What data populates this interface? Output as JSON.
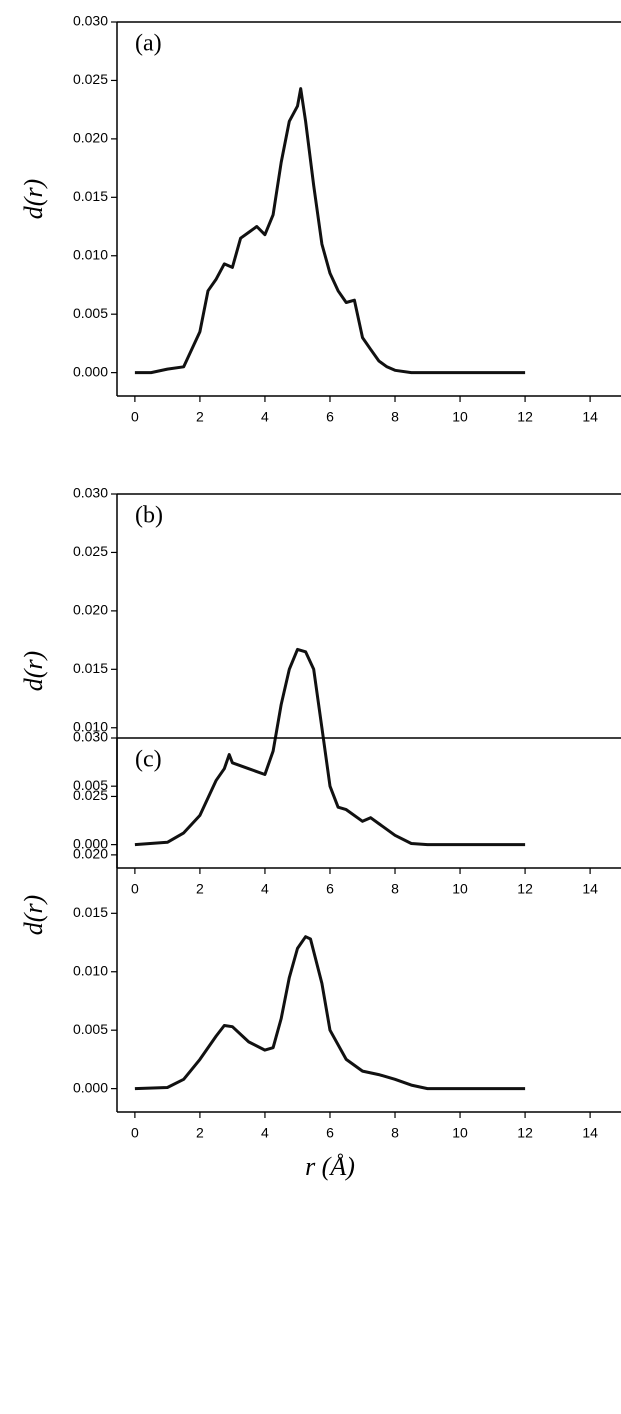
{
  "chart_data": [
    {
      "type": "line",
      "label": "(a)",
      "y_label": "d(r)",
      "xlim": [
        -0.55,
        14.95
      ],
      "ylim": [
        -0.002,
        0.03
      ],
      "xticks": [
        0,
        2,
        4,
        6,
        8,
        10,
        12,
        14
      ],
      "yticks": [
        {
          "value": 0,
          "label": "0.000"
        },
        {
          "value": 0.005,
          "label": "0.005"
        },
        {
          "value": 0.01,
          "label": "0.010"
        },
        {
          "value": 0.015,
          "label": "0.015"
        },
        {
          "value": 0.02,
          "label": "0.020"
        },
        {
          "value": 0.025,
          "label": "0.025"
        },
        {
          "value": 0.03,
          "label": "0.030"
        }
      ],
      "x": [
        0,
        0.5,
        1,
        1.5,
        1.75,
        2,
        2.25,
        2.5,
        2.75,
        3,
        3.25,
        3.5,
        3.75,
        4,
        4.25,
        4.5,
        4.75,
        5,
        5.1,
        5.25,
        5.5,
        5.75,
        6,
        6.25,
        6.5,
        6.75,
        7,
        7.25,
        7.5,
        7.75,
        8,
        8.5,
        9,
        10,
        11,
        12
      ],
      "series": [
        {
          "color": "#111111",
          "values": [
            0,
            0,
            0.0003,
            0.0005,
            0.002,
            0.0035,
            0.007,
            0.008,
            0.0093,
            0.009,
            0.0115,
            0.012,
            0.0125,
            0.0118,
            0.0135,
            0.018,
            0.0215,
            0.0228,
            0.0243,
            0.0215,
            0.016,
            0.011,
            0.0085,
            0.007,
            0.006,
            0.0062,
            0.003,
            0.002,
            0.001,
            0.0005,
            0.0002,
            0,
            0,
            0,
            0,
            0
          ]
        }
      ]
    },
    {
      "type": "line",
      "label": "(b)",
      "y_label": "d(r)",
      "xlim": [
        -0.55,
        14.95
      ],
      "ylim": [
        -0.002,
        0.03
      ],
      "xticks": [
        0,
        2,
        4,
        6,
        8,
        10,
        12,
        14
      ],
      "yticks": [
        {
          "value": 0,
          "label": "0.000"
        },
        {
          "value": 0.005,
          "label": "0.005"
        },
        {
          "value": 0.01,
          "label": "0.010"
        },
        {
          "value": 0.015,
          "label": "0.015"
        },
        {
          "value": 0.02,
          "label": "0.020"
        },
        {
          "value": 0.025,
          "label": "0.025"
        },
        {
          "value": 0.03,
          "label": "0.030"
        }
      ],
      "x": [
        0,
        1,
        1.5,
        2,
        2.5,
        2.75,
        2.9,
        3,
        3.5,
        4,
        4.25,
        4.5,
        4.75,
        5,
        5.25,
        5.5,
        5.75,
        6,
        6.25,
        6.5,
        7,
        7.25,
        7.5,
        8,
        8.5,
        9,
        10,
        11,
        12
      ],
      "series": [
        {
          "color": "#111111",
          "values": [
            0,
            0.0002,
            0.001,
            0.0025,
            0.0055,
            0.0065,
            0.0077,
            0.007,
            0.0065,
            0.006,
            0.008,
            0.012,
            0.015,
            0.0167,
            0.0165,
            0.015,
            0.01,
            0.005,
            0.0032,
            0.003,
            0.002,
            0.0023,
            0.0018,
            0.0008,
            0.0001,
            0,
            0,
            0,
            0
          ]
        }
      ]
    },
    {
      "type": "line",
      "label": "(c)",
      "y_label": "d(r)",
      "x_label": "r (Å)",
      "xlim": [
        -0.55,
        14.95
      ],
      "ylim": [
        -0.002,
        0.03
      ],
      "xticks": [
        0,
        2,
        4,
        6,
        8,
        10,
        12,
        14
      ],
      "yticks": [
        {
          "value": 0,
          "label": "0.000"
        },
        {
          "value": 0.005,
          "label": "0.005"
        },
        {
          "value": 0.01,
          "label": "0.010"
        },
        {
          "value": 0.015,
          "label": "0.015"
        },
        {
          "value": 0.02,
          "label": "0.020"
        },
        {
          "value": 0.025,
          "label": "0.025"
        },
        {
          "value": 0.03,
          "label": "0.030"
        }
      ],
      "x": [
        0,
        1,
        1.5,
        2,
        2.5,
        2.75,
        3,
        3.5,
        4,
        4.25,
        4.5,
        4.75,
        5,
        5.25,
        5.4,
        5.75,
        6,
        6.5,
        7,
        7.5,
        8,
        8.5,
        9,
        10,
        11,
        12
      ],
      "series": [
        {
          "color": "#111111",
          "values": [
            0,
            0.0001,
            0.0008,
            0.0025,
            0.0045,
            0.0054,
            0.0053,
            0.004,
            0.0033,
            0.0035,
            0.006,
            0.0095,
            0.012,
            0.013,
            0.0128,
            0.009,
            0.005,
            0.0025,
            0.0015,
            0.0012,
            0.0008,
            0.0003,
            0,
            0,
            0,
            0
          ]
        }
      ]
    }
  ]
}
